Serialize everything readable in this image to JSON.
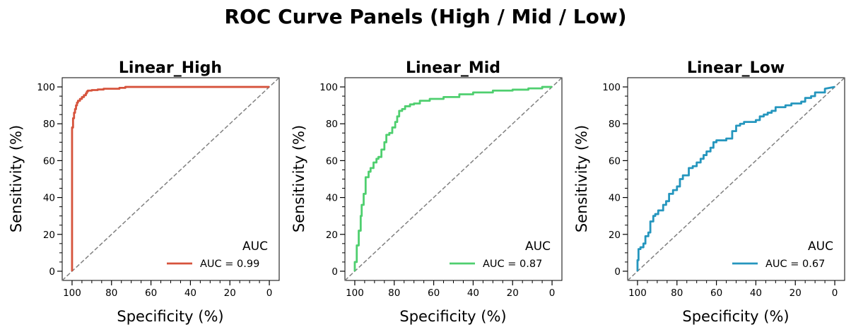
{
  "chart_data": {
    "title": "ROC Curve Panels (High / Mid / Low)",
    "panels": [
      {
        "type": "line",
        "title": "Linear_High",
        "xlabel": "Specificity (%)",
        "ylabel": "Sensitivity (%)",
        "xlim": [
          105,
          -5
        ],
        "ylim": [
          -5,
          105
        ],
        "xticks": [
          100,
          80,
          60,
          40,
          20,
          0
        ],
        "yticks": [
          0,
          20,
          40,
          60,
          80,
          100
        ],
        "legend": {
          "title": "AUC",
          "label": "AUC = 0.99",
          "loc": "lower right"
        },
        "color": "#d6533c",
        "auc": 0.99,
        "series": [
          {
            "name": "AUC = 0.99",
            "specificity": [
              100,
              100,
              100,
              99.5,
              99.5,
              99,
              99,
              98.5,
              98.5,
              98,
              98,
              97.5,
              97.5,
              97,
              97,
              96,
              96,
              95,
              95,
              94,
              94,
              93,
              93,
              92.5,
              92.5,
              92,
              92,
              90,
              90,
              87,
              87,
              84,
              84,
              76,
              76,
              73,
              73,
              0
            ],
            "sensitivity": [
              0,
              50,
              78,
              78,
              83,
              83,
              86,
              86,
              88,
              88,
              90,
              90,
              91.5,
              91.5,
              92.5,
              92.5,
              93.5,
              93.5,
              94.5,
              94.5,
              95.5,
              95.5,
              96.5,
              96.5,
              97.5,
              97.5,
              98,
              98,
              98.3,
              98.3,
              98.6,
              98.6,
              99,
              99,
              99.5,
              99.5,
              100,
              100
            ]
          }
        ]
      },
      {
        "type": "line",
        "title": "Linear_Mid",
        "xlabel": "Specificity (%)",
        "ylabel": "Sensitivity (%)",
        "xlim": [
          105,
          -5
        ],
        "ylim": [
          -5,
          105
        ],
        "xticks": [
          100,
          80,
          60,
          40,
          20,
          0
        ],
        "yticks": [
          0,
          20,
          40,
          60,
          80,
          100
        ],
        "legend": {
          "title": "AUC",
          "label": "AUC = 0.87",
          "loc": "lower right"
        },
        "color": "#4fcf6f",
        "auc": 0.87,
        "series": [
          {
            "name": "AUC = 0.87",
            "specificity": [
              100,
              100,
              99,
              99,
              98,
              98,
              97,
              97,
              96.5,
              96.5,
              95.5,
              95.5,
              94.5,
              94.5,
              93,
              93,
              92,
              92,
              90.5,
              90.5,
              89,
              89,
              88,
              88,
              86.5,
              86.5,
              85,
              85,
              84,
              84,
              82.5,
              82.5,
              81,
              81,
              79.5,
              79.5,
              78.5,
              78.5,
              77.5,
              77.5,
              76,
              76,
              74.5,
              74.5,
              72,
              72,
              70,
              70,
              67,
              67,
              62,
              62,
              55,
              55,
              47,
              47,
              40,
              40,
              30,
              30,
              20,
              20,
              12,
              12,
              5,
              5,
              0
            ],
            "sensitivity": [
              0,
              5,
              5,
              14,
              14,
              22,
              22,
              30,
              30,
              36,
              36,
              42,
              42,
              51,
              51,
              54,
              54,
              56,
              56,
              59,
              59,
              61,
              61,
              62,
              62,
              66,
              66,
              70,
              70,
              74,
              74,
              75,
              75,
              78,
              78,
              81,
              81,
              84,
              84,
              87,
              87,
              88,
              88,
              89.5,
              89.5,
              90.5,
              90.5,
              91,
              91,
              92.5,
              92.5,
              93.5,
              93.5,
              94.5,
              94.5,
              96,
              96,
              97,
              97,
              98,
              98,
              98.5,
              98.5,
              99.2,
              99.2,
              100,
              100
            ]
          }
        ]
      },
      {
        "type": "line",
        "title": "Linear_Low",
        "xlabel": "Specificity (%)",
        "ylabel": "Sensitivity (%)",
        "xlim": [
          105,
          -5
        ],
        "ylim": [
          -5,
          105
        ],
        "xticks": [
          100,
          80,
          60,
          40,
          20,
          0
        ],
        "yticks": [
          0,
          20,
          40,
          60,
          80,
          100
        ],
        "legend": {
          "title": "AUC",
          "label": "AUC = 0.67",
          "loc": "lower right"
        },
        "color": "#2596be",
        "auc": 0.67,
        "series": [
          {
            "name": "AUC = 0.67",
            "specificity": [
              100,
              100,
              99.5,
              99.5,
              98.5,
              98.5,
              97,
              97,
              96,
              96,
              94.5,
              94.5,
              93.5,
              93.5,
              92,
              92,
              91,
              91,
              89.5,
              89.5,
              87,
              87,
              85.5,
              85.5,
              84,
              84,
              82,
              82,
              80,
              80,
              78.5,
              78.5,
              77,
              77,
              74,
              74,
              72,
              72,
              70,
              70,
              68,
              68,
              66.5,
              66.5,
              65,
              65,
              63,
              63,
              61.5,
              61.5,
              60,
              60,
              55,
              55,
              52,
              52,
              50,
              50,
              48,
              48,
              46,
              46,
              40,
              40,
              38,
              38,
              36,
              36,
              34,
              34,
              32,
              32,
              30,
              30,
              25,
              25,
              22,
              22,
              17,
              17,
              15,
              15,
              12,
              12,
              10,
              10,
              5,
              5,
              0
            ],
            "sensitivity": [
              0,
              6,
              6,
              12,
              12,
              13,
              13,
              15,
              15,
              19,
              19,
              21,
              21,
              27,
              27,
              30,
              30,
              31,
              31,
              33,
              33,
              36,
              36,
              38,
              38,
              42,
              42,
              44,
              44,
              46,
              46,
              50,
              50,
              52,
              52,
              56,
              56,
              57,
              57,
              59,
              59,
              61,
              61,
              63,
              63,
              65,
              65,
              67,
              67,
              70,
              70,
              71,
              71,
              72,
              72,
              76,
              76,
              79,
              79,
              80,
              80,
              81,
              81,
              82,
              82,
              84,
              84,
              85,
              85,
              86,
              86,
              87,
              87,
              89,
              89,
              90,
              90,
              91,
              91,
              92,
              92,
              94,
              94,
              95,
              95,
              97,
              97,
              99,
              100
            ]
          }
        ]
      }
    ]
  }
}
